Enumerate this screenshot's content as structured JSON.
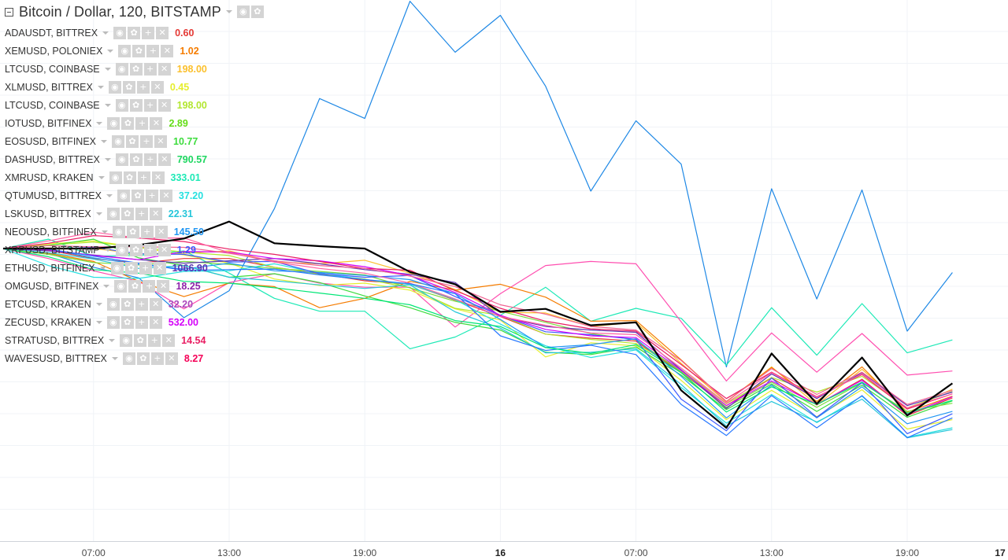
{
  "header": {
    "title": "Bitcoin / Dollar, 120, BITSTAMP"
  },
  "icons": {
    "eye": "eye-icon",
    "gear": "gear-icon",
    "plus": "plus-icon",
    "close": "close-icon"
  },
  "legend": [
    {
      "symbol": "ADAUSDT, BITTREX",
      "value": "0.60",
      "color": "#e53935"
    },
    {
      "symbol": "XEMUSD, POLONIEX",
      "value": "1.02",
      "color": "#f57c00"
    },
    {
      "symbol": "LTCUSD, COINBASE",
      "value": "198.00",
      "color": "#fbc02d"
    },
    {
      "symbol": "XLMUSD, BITTREX",
      "value": "0.45",
      "color": "#e6ee2f"
    },
    {
      "symbol": "LTCUSD, COINBASE",
      "value": "198.00",
      "color": "#b2e62f"
    },
    {
      "symbol": "IOTUSD, BITFINEX",
      "value": "2.89",
      "color": "#64dd17"
    },
    {
      "symbol": "EOSUSD, BITFINEX",
      "value": "10.77",
      "color": "#3ddc3d"
    },
    {
      "symbol": "DASHUSD, BITTREX",
      "value": "790.57",
      "color": "#1ed760"
    },
    {
      "symbol": "XMRUSD, KRAKEN",
      "value": "333.01",
      "color": "#1de9b6"
    },
    {
      "symbol": "QTUMUSD, BITTREX",
      "value": "37.20",
      "color": "#26e0e0"
    },
    {
      "symbol": "LSKUSD, BITTREX",
      "value": "22.31",
      "color": "#26c6da"
    },
    {
      "symbol": "NEOUSD, BITFINEX",
      "value": "145.50",
      "color": "#2196f3"
    },
    {
      "symbol": "XRPUSD, BITSTAMP",
      "value": "1.29",
      "color": "#3d5afe"
    },
    {
      "symbol": "ETHUSD, BITFINEX",
      "value": "1066.90",
      "color": "#5e35b1"
    },
    {
      "symbol": "OMGUSD, BITFINEX",
      "value": "18.25",
      "color": "#8e24aa"
    },
    {
      "symbol": "ETCUSD, KRAKEN",
      "value": "32.20",
      "color": "#ab47bc"
    },
    {
      "symbol": "ZECUSD, KRAKEN",
      "value": "532.00",
      "color": "#d500f9"
    },
    {
      "symbol": "STRATUSD, BITTREX",
      "value": "14.54",
      "color": "#e91e63"
    },
    {
      "symbol": "WAVESUSD, BITTREX",
      "value": "8.27",
      "color": "#f50057"
    }
  ],
  "chart_data": {
    "type": "line",
    "title": "Bitcoin / Dollar, 120, BITSTAMP",
    "x": [
      "03:00",
      "05:00",
      "07:00",
      "09:00",
      "11:00",
      "13:00",
      "15:00",
      "17:00",
      "19:00",
      "21:00",
      "23:00",
      "16",
      "03:00",
      "05:00",
      "07:00",
      "09:00",
      "11:00",
      "13:00",
      "15:00",
      "17:00",
      "19:00",
      "21:00"
    ],
    "x_tick_labels": [
      "07:00",
      "13:00",
      "19:00",
      "16",
      "07:00",
      "13:00",
      "19:00",
      "17"
    ],
    "bold_tick_labels": [
      "16",
      "17"
    ],
    "y_axis_labels_visible": false,
    "grid": true,
    "series": [
      {
        "color": "#1e88e5",
        "values": [
          0,
          -0.8,
          -3.2,
          -5,
          -11.8,
          -7.2,
          6.8,
          25.6,
          22.2,
          42.2,
          33.5,
          39.8,
          27.7,
          9.8,
          21.8,
          14.4,
          -20.2,
          10.2,
          -8.6,
          10,
          -14.1,
          -4.1
        ]
      },
      {
        "color": "#000000",
        "main": true,
        "values": [
          0,
          0,
          0,
          0.6,
          1.7,
          4.6,
          0.9,
          0.4,
          0,
          -4,
          -6.1,
          -10.8,
          -10.3,
          -13.1,
          -12.6,
          -24.2,
          -30.6,
          -17.9,
          -26.5,
          -18.6,
          -28.5,
          -23
        ]
      },
      {
        "color": "#1de9b6",
        "values": [
          0,
          1.6,
          -1.3,
          -1.2,
          -0.4,
          -4.2,
          -8.5,
          -10.7,
          -10.7,
          -17.1,
          -15.1,
          -11.4,
          -6.6,
          -12.4,
          -10.2,
          -11.9,
          -19.9,
          -10.1,
          -18.2,
          -9.4,
          -17.8,
          -15.6
        ]
      },
      {
        "color": "#ff4fb0",
        "values": [
          0,
          -1.7,
          -3.8,
          -5.6,
          -10.3,
          -5.8,
          -4.3,
          -5.9,
          -6.6,
          -6.6,
          -13.4,
          -7.7,
          -2.9,
          -2.2,
          -2.6,
          -12.5,
          -22.6,
          -14.4,
          -21.1,
          -14.5,
          -21.6,
          -20.9
        ]
      },
      {
        "color": "#fbc02d",
        "values": [
          0,
          0.1,
          0,
          -0.9,
          -0.8,
          -0.4,
          -2.3,
          -2.6,
          -2,
          -4.2,
          -7,
          -10.9,
          -11,
          -13.3,
          -12.6,
          -19.6,
          -26.2,
          -20.2,
          -26.7,
          -20.6,
          -27.4,
          -24
        ]
      },
      {
        "color": "#f57c00",
        "values": [
          0,
          -0.8,
          -2.2,
          -5.6,
          -8.2,
          -5.9,
          -6.5,
          -10.1,
          -8.5,
          -5.6,
          -7.1,
          -6.1,
          -8.3,
          -12.4,
          -12.3,
          -19,
          -26.1,
          -20.3,
          -26.1,
          -20.2,
          -27.9,
          -25.2
        ]
      },
      {
        "color": "#e53935",
        "values": [
          0,
          -0.3,
          -1.7,
          -2.5,
          -1.7,
          -1.7,
          -3.2,
          -4.3,
          -5.5,
          -6.1,
          -8.8,
          -11.6,
          -14.6,
          -15.3,
          -15.8,
          -21.2,
          -26.8,
          -22.1,
          -26.7,
          -22.3,
          -28.5,
          -25.5
        ]
      },
      {
        "color": "#e6ee2f",
        "values": [
          0,
          0.8,
          1.3,
          0.2,
          -1.1,
          -2.5,
          -5.2,
          -6.3,
          -5.9,
          -7.1,
          -10.3,
          -12.2,
          -18.5,
          -16.1,
          -16.6,
          -22.5,
          -29.2,
          -24.2,
          -28.7,
          -24.1,
          -30.8,
          -29.2
        ]
      },
      {
        "color": "#b2e62f",
        "values": [
          0,
          0.6,
          1.1,
          0.2,
          -0.6,
          -1.2,
          -3.2,
          -4.4,
          -5.2,
          -6.7,
          -10.2,
          -11.4,
          -14.6,
          -15.5,
          -16.2,
          -20.7,
          -26.5,
          -22,
          -24.5,
          -21.8,
          -27.2,
          -24.4
        ]
      },
      {
        "color": "#3ddc3d",
        "values": [
          0,
          0.5,
          1.6,
          -1.6,
          -2.9,
          -4.9,
          -4.3,
          -5.8,
          -8.1,
          -10.1,
          -12.6,
          -13.9,
          -17.7,
          -18.1,
          -16.8,
          -21.6,
          -27.5,
          -23.1,
          -27.8,
          -23.3,
          -28.8,
          -26
        ]
      },
      {
        "color": "#7bdc3d",
        "values": [
          0,
          -1,
          -2.4,
          -2.8,
          -2.2,
          -2.7,
          -3.4,
          -3.9,
          -4.5,
          -6.7,
          -9,
          -10.7,
          -12.6,
          -14.5,
          -15.6,
          -21,
          -27.1,
          -22.8,
          -27.1,
          -22.9,
          -27.8,
          -26.4
        ]
      },
      {
        "color": "#26e0e0",
        "values": [
          0,
          -2.9,
          -4.9,
          -5.1,
          -3.9,
          -3.8,
          -2.6,
          -4.2,
          -5.3,
          -6.1,
          -8.7,
          -12.9,
          -16.6,
          -18.6,
          -17.3,
          -23.7,
          -29.8,
          -24.9,
          -29.7,
          -25.2,
          -32.2,
          -30.6
        ]
      },
      {
        "color": "#26c6da",
        "values": [
          0,
          -0.7,
          -1.8,
          -3.4,
          -2.9,
          -4.9,
          -5.5,
          -6.2,
          -6.8,
          -6.2,
          -10.8,
          -13.6,
          -17.8,
          -17.7,
          -17.1,
          -23.2,
          -30.3,
          -26.1,
          -29.6,
          -25.7,
          -32.3,
          -30.9
        ]
      },
      {
        "color": "#2196f3",
        "values": [
          0,
          -0.1,
          -1.6,
          -2.7,
          -3.5,
          -2.5,
          -3.8,
          -4.1,
          -4.6,
          -5.3,
          -7.7,
          -12.1,
          -16.9,
          -16.4,
          -15.4,
          -21.8,
          -28.9,
          -23.3,
          -28.9,
          -23.6,
          -29.9,
          -27.8
        ]
      },
      {
        "color": "#3d5afe",
        "values": [
          0,
          -0.1,
          0.2,
          -0.9,
          -1,
          -2.3,
          -2.2,
          -4.3,
          -4.9,
          -4.6,
          -8.2,
          -11.4,
          -14.2,
          -14.7,
          -15.5,
          -25.7,
          -31.1,
          -22.1,
          -28.8,
          -22.9,
          -31.6,
          -28.2
        ]
      },
      {
        "color": "#5e35b1",
        "values": [
          0,
          -0.4,
          -1.1,
          -1.9,
          -2.5,
          -2.1,
          -1.7,
          -2.6,
          -3.6,
          -4.4,
          -5.8,
          -11.6,
          -13.3,
          -13.9,
          -14.3,
          -20.7,
          -27.3,
          -21.4,
          -25.6,
          -21.2,
          -26.8,
          -24.5
        ]
      },
      {
        "color": "#d500f9",
        "values": [
          0,
          -0.2,
          -1.2,
          -1.9,
          -0.5,
          -0.6,
          -1.7,
          -2.1,
          -3.1,
          -4.6,
          -7.5,
          -11.4,
          -13.8,
          -14.9,
          -15.2,
          -20.8,
          -26.8,
          -22.6,
          -26.6,
          -22.5,
          -28.3,
          -25.3
        ]
      },
      {
        "color": "#e91e63",
        "values": [
          0,
          0.9,
          2.2,
          1.8,
          1.2,
          -0.1,
          -1,
          -2.2,
          -3.4,
          -3.7,
          -7.2,
          -10.2,
          -12.4,
          -13.7,
          -14.1,
          -19.8,
          -25.6,
          -21.1,
          -25.3,
          -21.5,
          -27.4,
          -24.8
        ]
      },
      {
        "color": "#ff5fa2",
        "values": [
          0,
          1.3,
          2.8,
          1.8,
          1.8,
          -0.7,
          -2.3,
          -3.4,
          -4.2,
          -5.9,
          -8.6,
          -11.6,
          -13.1,
          -14.4,
          -14.7,
          -20.4,
          -26.4,
          -21.2,
          -25.4,
          -21.4,
          -27.2,
          -24.8
        ]
      },
      {
        "color": "#2979ff",
        "values": [
          0,
          -0.1,
          -1.3,
          -2.5,
          -3.7,
          -3.6,
          -3.5,
          -4.5,
          -5.3,
          -6,
          -7.7,
          -14.9,
          -17.4,
          -16.5,
          -18.1,
          -26.6,
          -31.9,
          -25.1,
          -30.6,
          -25.1,
          -32.3,
          -28.9
        ]
      },
      {
        "color": "#f06292",
        "values": [
          0,
          0.5,
          0.3,
          0.3,
          0.2,
          -0.8,
          -2.1,
          -2.9,
          -3.4,
          -4.7,
          -6.5,
          -9.6,
          -11.2,
          -13.3,
          -13.9,
          -19.1,
          -26.1,
          -20.5,
          -24.9,
          -21.1,
          -26.6,
          -24.2
        ]
      },
      {
        "color": "#00e676",
        "values": [
          0,
          -1.4,
          -3.6,
          -4.2,
          -5.6,
          -5.9,
          -6.7,
          -7.6,
          -8.5,
          -9.6,
          -12.3,
          -13.3,
          -16.9,
          -17.9,
          -16.4,
          -21.2,
          -27.9,
          -23.6,
          -26.6,
          -22.8,
          -28.1,
          -25.9
        ]
      }
    ]
  }
}
